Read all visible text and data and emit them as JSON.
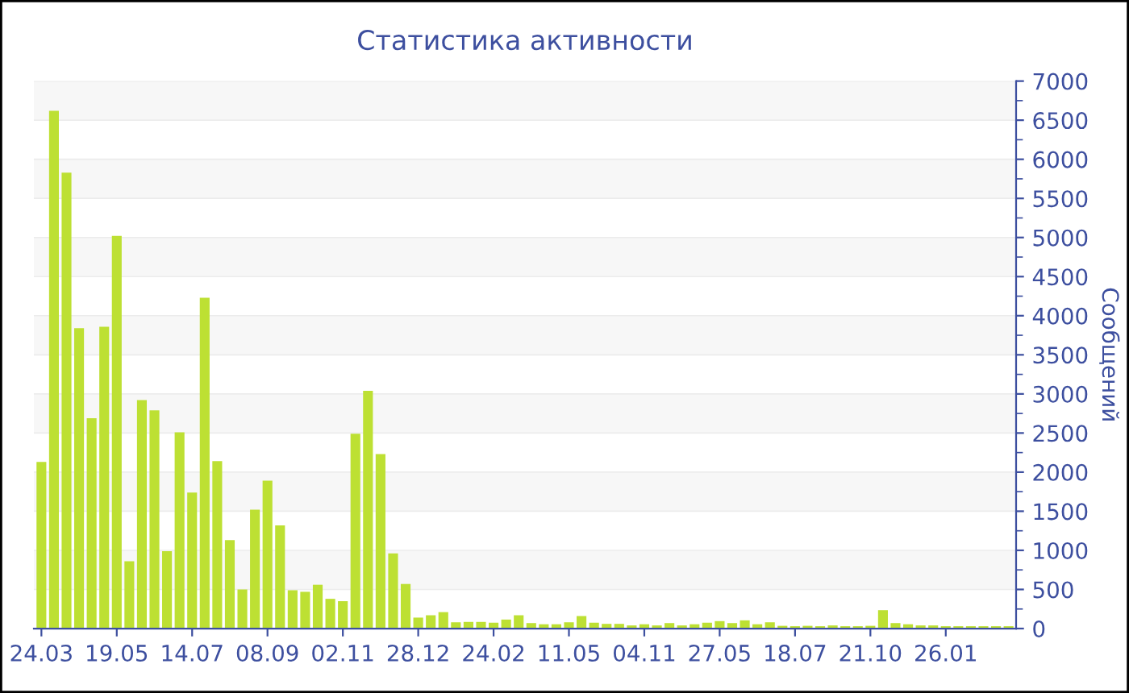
{
  "chart_data": {
    "type": "bar",
    "title": "Статистика активности",
    "ylabel": "Сообщений",
    "categories": [
      "24.03",
      null,
      null,
      null,
      null,
      null,
      "19.05",
      null,
      null,
      null,
      null,
      null,
      "14.07",
      null,
      null,
      null,
      null,
      null,
      "08.09",
      null,
      null,
      null,
      null,
      null,
      "02.11",
      null,
      null,
      null,
      null,
      null,
      "28.12",
      null,
      null,
      null,
      null,
      null,
      "24.02",
      null,
      null,
      null,
      null,
      null,
      "11.05",
      null,
      null,
      null,
      null,
      null,
      "04.11",
      null,
      null,
      null,
      null,
      null,
      "27.05",
      null,
      null,
      null,
      null,
      null,
      "18.07",
      null,
      null,
      null,
      null,
      null,
      "21.10",
      null,
      null,
      null,
      null,
      null,
      "26.01",
      null,
      null,
      null,
      null,
      null
    ],
    "values": [
      2130,
      6620,
      5830,
      3840,
      2690,
      3860,
      5020,
      860,
      2920,
      2790,
      990,
      2510,
      1740,
      4230,
      2140,
      1130,
      500,
      1520,
      1890,
      1320,
      490,
      470,
      560,
      380,
      350,
      2490,
      3040,
      2230,
      960,
      570,
      140,
      170,
      210,
      80,
      85,
      85,
      75,
      115,
      170,
      70,
      55,
      55,
      80,
      160,
      75,
      60,
      60,
      40,
      55,
      40,
      70,
      40,
      55,
      75,
      95,
      70,
      105,
      55,
      80,
      35,
      30,
      35,
      30,
      40,
      30,
      30,
      35,
      235,
      70,
      55,
      40,
      40,
      30,
      30,
      30,
      30,
      30,
      30
    ],
    "color": "#bde033",
    "ylim": [
      0,
      7000
    ],
    "yticks": [
      0,
      500,
      1000,
      1500,
      2000,
      2500,
      3000,
      3500,
      4000,
      4500,
      5000,
      5500,
      6000,
      6500,
      7000
    ],
    "grid": "y"
  }
}
